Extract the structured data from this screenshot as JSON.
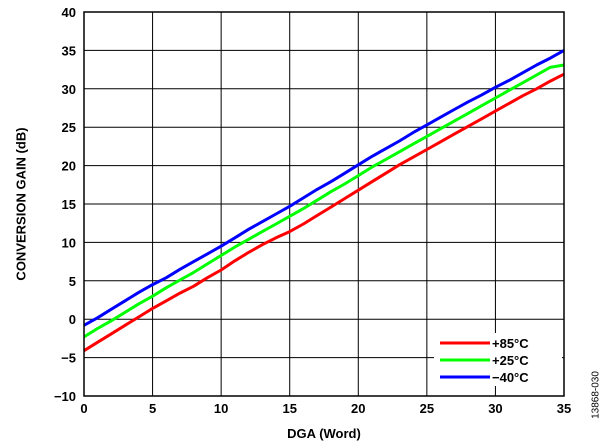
{
  "figure_id": "13868-030",
  "chart_data": {
    "type": "line",
    "xlabel": "DGA (Word)",
    "ylabel": "CONVERSION GAIN (dB)",
    "xlim": [
      0,
      35
    ],
    "ylim": [
      -10,
      40
    ],
    "x_ticks": [
      0,
      5,
      10,
      15,
      20,
      25,
      30,
      35
    ],
    "y_ticks": [
      -10,
      -5,
      0,
      5,
      10,
      15,
      20,
      25,
      30,
      35,
      40
    ],
    "y_tick_labels": [
      "−10",
      "−5",
      "0",
      "5",
      "10",
      "15",
      "20",
      "25",
      "30",
      "35",
      "40"
    ],
    "grid": true,
    "legend_position": "bottom-right",
    "series": [
      {
        "name": "+85°C",
        "color": "#ff0000",
        "x": [
          0,
          1,
          2,
          3,
          4,
          5,
          6,
          7,
          8,
          9,
          10,
          11,
          12,
          13,
          14,
          15,
          16,
          17,
          18,
          19,
          20,
          21,
          22,
          23,
          24,
          25,
          26,
          27,
          28,
          29,
          30,
          31,
          32,
          33,
          34,
          35
        ],
        "y": [
          -4.1,
          -3.0,
          -1.9,
          -0.8,
          0.3,
          1.4,
          2.4,
          3.4,
          4.3,
          5.4,
          6.4,
          7.6,
          8.7,
          9.7,
          10.6,
          11.4,
          12.4,
          13.5,
          14.6,
          15.7,
          16.8,
          17.9,
          19.0,
          20.1,
          21.1,
          22.1,
          23.1,
          24.1,
          25.1,
          26.1,
          27.1,
          28.1,
          29.1,
          30.0,
          31.0,
          31.9
        ]
      },
      {
        "name": "+25°C",
        "color": "#00ff00",
        "x": [
          0,
          1,
          2,
          3,
          4,
          5,
          6,
          7,
          8,
          9,
          10,
          11,
          12,
          13,
          14,
          15,
          16,
          17,
          18,
          19,
          20,
          21,
          22,
          23,
          24,
          25,
          26,
          27,
          28,
          29,
          30,
          31,
          32,
          33,
          34,
          35
        ],
        "y": [
          -2.3,
          -1.2,
          -0.2,
          0.9,
          2.0,
          3.0,
          4.1,
          5.1,
          6.1,
          7.2,
          8.3,
          9.4,
          10.4,
          11.4,
          12.4,
          13.4,
          14.4,
          15.5,
          16.6,
          17.6,
          18.7,
          19.8,
          20.8,
          21.8,
          22.8,
          23.8,
          24.8,
          25.8,
          26.8,
          27.8,
          28.8,
          29.8,
          30.8,
          31.8,
          32.8,
          33.1
        ]
      },
      {
        "name": "−40°C",
        "color": "#0000ff",
        "x": [
          0,
          1,
          2,
          3,
          4,
          5,
          6,
          7,
          8,
          9,
          10,
          11,
          12,
          13,
          14,
          15,
          16,
          17,
          18,
          19,
          20,
          21,
          22,
          23,
          24,
          25,
          26,
          27,
          28,
          29,
          30,
          31,
          32,
          33,
          34,
          35
        ],
        "y": [
          -0.8,
          0.2,
          1.3,
          2.4,
          3.5,
          4.5,
          5.4,
          6.5,
          7.5,
          8.5,
          9.5,
          10.6,
          11.7,
          12.7,
          13.7,
          14.7,
          15.8,
          16.9,
          17.9,
          19.0,
          20.1,
          21.2,
          22.2,
          23.2,
          24.3,
          25.3,
          26.3,
          27.3,
          28.3,
          29.2,
          30.2,
          31.1,
          32.1,
          33.1,
          34.0,
          35.0
        ]
      }
    ]
  }
}
